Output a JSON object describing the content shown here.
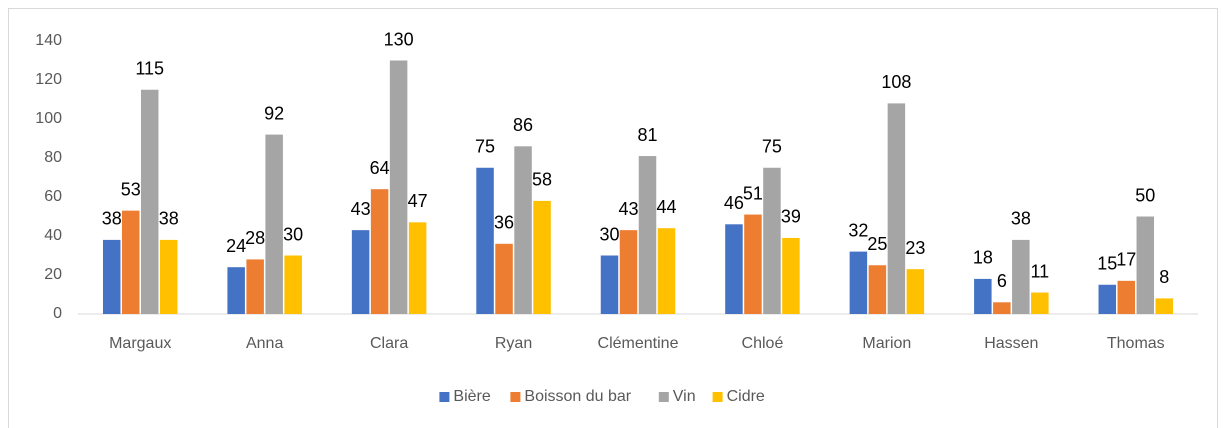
{
  "chart_data": {
    "type": "bar",
    "categories": [
      "Margaux",
      "Anna",
      "Clara",
      "Ryan",
      "Clémentine",
      "Chloé",
      "Marion",
      "Hassen",
      "Thomas"
    ],
    "series": [
      {
        "name": "Bière",
        "color": "#4472c4",
        "values": [
          38,
          24,
          43,
          75,
          30,
          46,
          32,
          18,
          15
        ]
      },
      {
        "name": "Boisson du bar",
        "color": "#ed7d31",
        "values": [
          53,
          28,
          64,
          36,
          43,
          51,
          25,
          6,
          17
        ]
      },
      {
        "name": "Vin",
        "color": "#a5a5a5",
        "values": [
          115,
          92,
          130,
          86,
          81,
          75,
          108,
          38,
          50
        ]
      },
      {
        "name": "Cidre",
        "color": "#ffc000",
        "values": [
          38,
          30,
          47,
          58,
          44,
          39,
          23,
          11,
          8
        ]
      }
    ],
    "ylim": [
      0,
      140
    ],
    "yticks": [
      0,
      20,
      40,
      60,
      80,
      100,
      120,
      140
    ],
    "grid": false,
    "legend": "bottom"
  }
}
